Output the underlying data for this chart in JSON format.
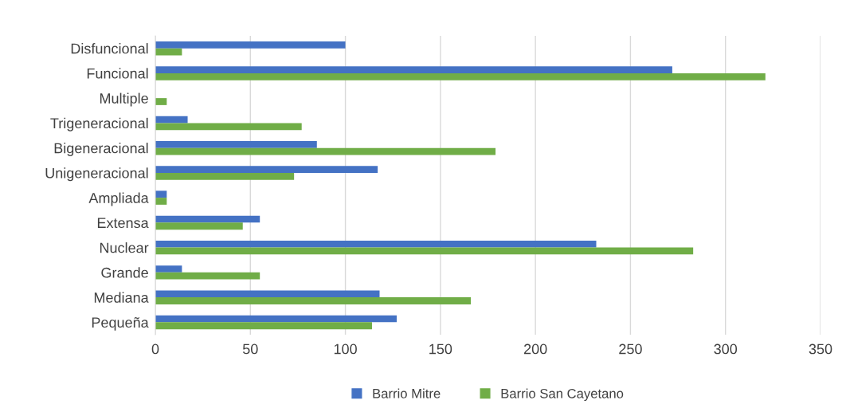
{
  "chart_data": {
    "type": "bar",
    "orientation": "horizontal",
    "categories": [
      "Disfuncional",
      "Funcional",
      "Multiple",
      "Trigeneracional",
      "Bigeneracional",
      "Unigeneracional",
      "Ampliada",
      "Extensa",
      "Nuclear",
      "Grande",
      "Mediana",
      "Pequeña"
    ],
    "series": [
      {
        "name": "Barrio Mitre",
        "color": "#4472c4",
        "values": [
          100,
          272,
          0,
          17,
          85,
          117,
          6,
          55,
          232,
          14,
          118,
          127
        ]
      },
      {
        "name": "Barrio San Cayetano",
        "color": "#70ad47",
        "values": [
          14,
          321,
          6,
          77,
          179,
          73,
          6,
          46,
          283,
          55,
          166,
          114
        ]
      }
    ],
    "xlim": [
      0,
      350
    ],
    "xticks": [
      0,
      50,
      100,
      150,
      200,
      250,
      300,
      350
    ],
    "grid": "x",
    "legend": "bottom"
  }
}
